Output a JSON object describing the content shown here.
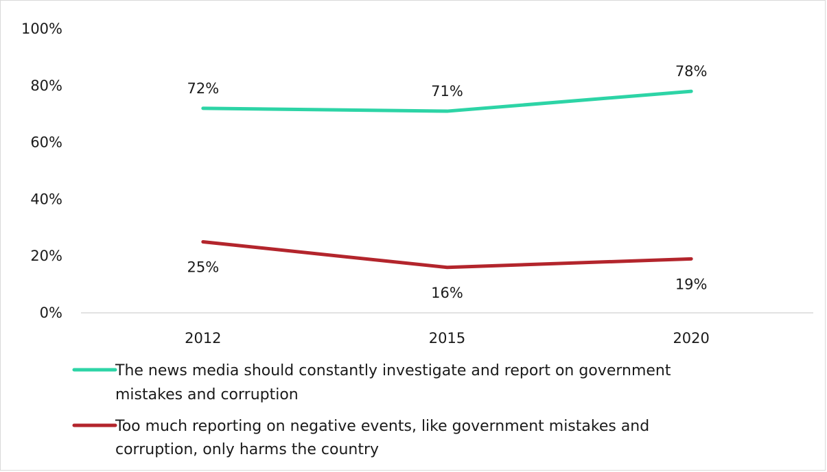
{
  "chart_data": {
    "type": "line",
    "categories": [
      "2012",
      "2015",
      "2020"
    ],
    "series": [
      {
        "name": "The news media should constantly investigate and report on government mistakes and corruption",
        "values": [
          72,
          71,
          78
        ],
        "labels": [
          "72%",
          "71%",
          "78%"
        ],
        "color": "#2dd4a6"
      },
      {
        "name": "Too much reporting on negative events, like government mistakes and corruption, only harms the country",
        "values": [
          25,
          16,
          19
        ],
        "labels": [
          "25%",
          "16%",
          "19%"
        ],
        "color": "#b3252c"
      }
    ],
    "y_ticks": [
      "0%",
      "20%",
      "40%",
      "60%",
      "80%",
      "100%"
    ],
    "ylim": [
      0,
      100
    ],
    "grid": false,
    "legend_position": "bottom"
  },
  "legend": {
    "items": [
      {
        "line1": "The news media should constantly investigate and report on government",
        "line2": "mistakes and corruption"
      },
      {
        "line1": "Too much reporting on negative events, like government mistakes and",
        "line2": "corruption, only harms the country"
      }
    ]
  }
}
